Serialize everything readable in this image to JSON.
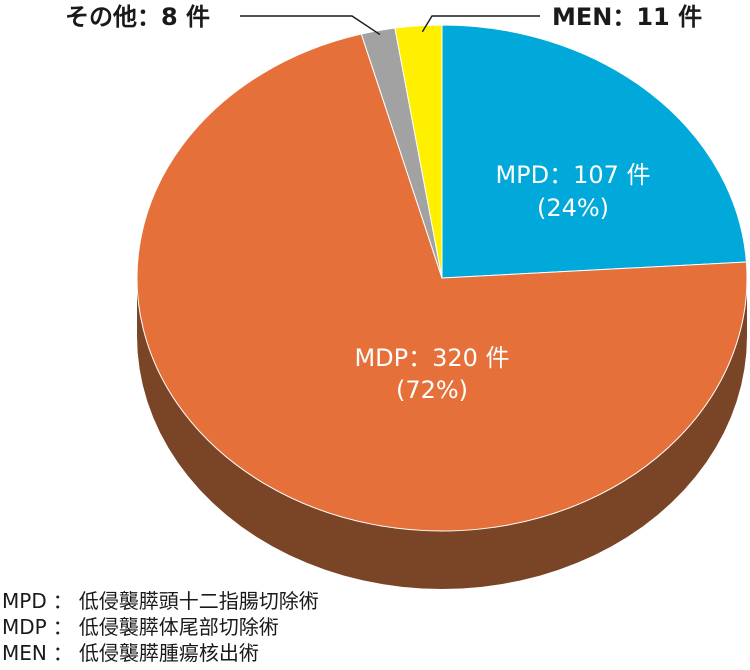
{
  "chart_data": {
    "type": "pie",
    "style": "3d",
    "slices": [
      {
        "key": "MPD",
        "label": "MPD：107 件",
        "percent_label": "(24%)",
        "value": 107,
        "color": "#00a9d9",
        "side_color": "#0080a6"
      },
      {
        "key": "MDP",
        "label": "MDP：320 件",
        "percent_label": "(72%)",
        "value": 320,
        "color": "#e5703a",
        "side_color": "#7a4527"
      },
      {
        "key": "other",
        "label": "その他：8 件",
        "value": 8,
        "color": "#a2a2a2",
        "side_color": "#6a6a6a"
      },
      {
        "key": "MEN",
        "label": "MEN：11 件",
        "value": 11,
        "color": "#fff000",
        "side_color": "#b3a800"
      }
    ],
    "total": 446,
    "start_position": "top",
    "direction": "clockwise"
  },
  "legend": [
    {
      "abbr": "MPD",
      "sep": "：",
      "desc": "低侵襲膵頭十二指腸切除術"
    },
    {
      "abbr": "MDP",
      "sep": "：",
      "desc": "低侵襲膵体尾部切除術"
    },
    {
      "abbr": "MEN",
      "sep": "：",
      "desc": "低侵襲膵腫瘍核出術"
    }
  ]
}
